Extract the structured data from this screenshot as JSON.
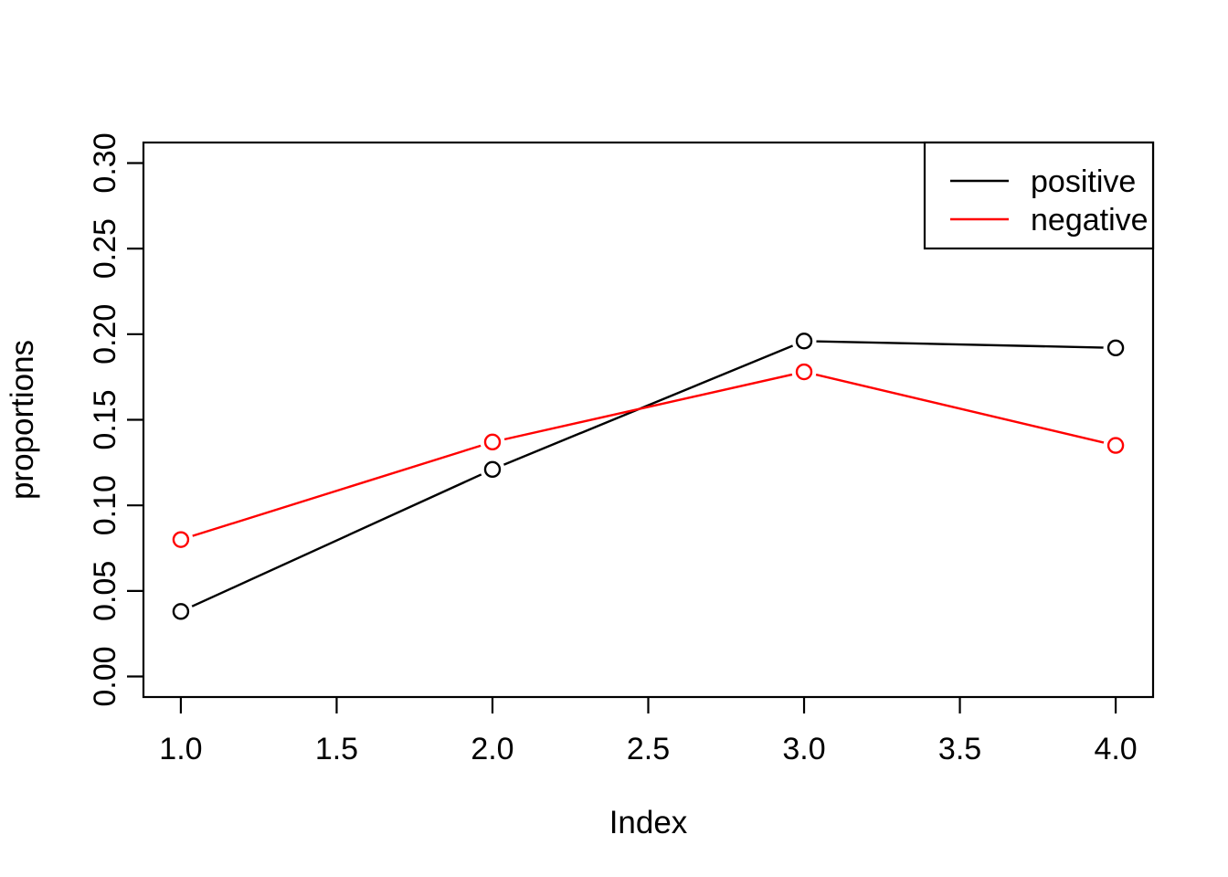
{
  "page": {
    "background": "#FFFFFF"
  },
  "chart_data": {
    "type": "line",
    "title": "",
    "xlabel": "Index",
    "ylabel": "proportions",
    "x": [
      1,
      2,
      3,
      4
    ],
    "series": [
      {
        "name": "positive",
        "color": "#000000",
        "values": [
          0.038,
          0.121,
          0.196,
          0.192
        ]
      },
      {
        "name": "negative",
        "color": "#FF0000",
        "values": [
          0.08,
          0.137,
          0.178,
          0.135
        ]
      }
    ],
    "xlim": [
      1,
      4
    ],
    "ylim": [
      0,
      0.3
    ],
    "xticks": {
      "values": [
        1.0,
        1.5,
        2.0,
        2.5,
        3.0,
        3.5,
        4.0
      ],
      "labels": [
        "1.0",
        "1.5",
        "2.0",
        "2.5",
        "3.0",
        "3.5",
        "4.0"
      ]
    },
    "yticks": {
      "values": [
        0.0,
        0.05,
        0.1,
        0.15,
        0.2,
        0.25,
        0.3
      ],
      "labels": [
        "0.00",
        "0.05",
        "0.10",
        "0.15",
        "0.20",
        "0.25",
        "0.30"
      ]
    },
    "legend": {
      "position": "topright",
      "entries": [
        {
          "label": "positive",
          "color": "#000000"
        },
        {
          "label": "negative",
          "color": "#FF0000"
        }
      ]
    },
    "marker": "open-circle",
    "grid": false,
    "axis_color": "#000000",
    "background": "#FFFFFF"
  }
}
